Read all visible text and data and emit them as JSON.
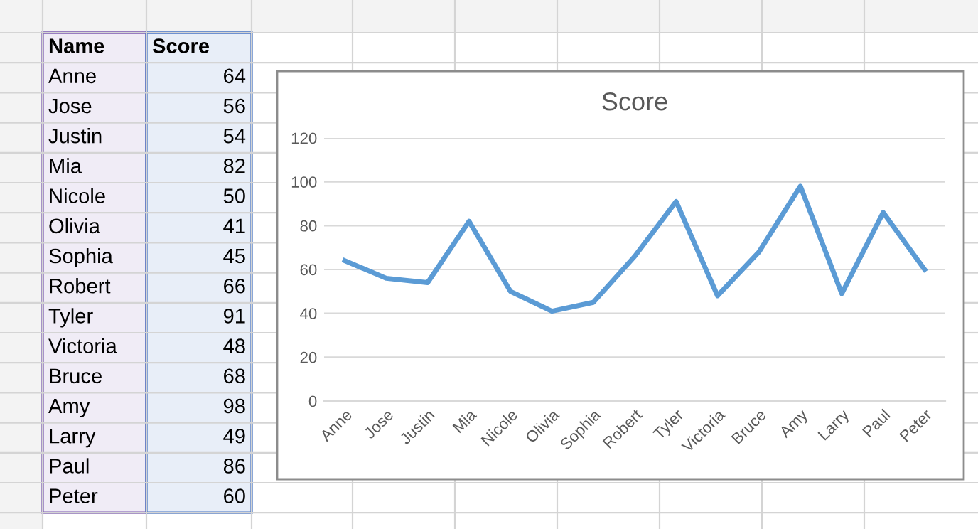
{
  "chart_data": [
    {
      "type": "other",
      "annotations": [
        "Name",
        "Score",
        "Anne",
        "64",
        "Jose",
        "56",
        "Justin",
        "54",
        "Mia",
        "82",
        "Nicole",
        "50",
        "Olivia",
        "41",
        "Sophia",
        "45",
        "Robert",
        "66",
        "Tyler",
        "91",
        "Victoria",
        "48",
        "Bruce",
        "68",
        "Amy",
        "98",
        "Larry",
        "49",
        "Paul",
        "86",
        "Peter",
        "60"
      ]
    },
    {
      "type": "line",
      "title": "Score",
      "categories": [
        "Anne",
        "Jose",
        "Justin",
        "Mia",
        "Nicole",
        "Olivia",
        "Sophia",
        "Robert",
        "Tyler",
        "Victoria",
        "Bruce",
        "Amy",
        "Larry",
        "Paul",
        "Peter"
      ],
      "values": [
        64,
        56,
        54,
        82,
        50,
        41,
        45,
        66,
        91,
        48,
        68,
        98,
        49,
        86,
        60
      ],
      "color": "#5b9bd5",
      "ylim": [
        0,
        120
      ],
      "yticks": [
        0,
        20,
        40,
        60,
        80,
        100,
        120
      ],
      "grid": "y",
      "marker": "none",
      "line_style": "solid"
    }
  ]
}
